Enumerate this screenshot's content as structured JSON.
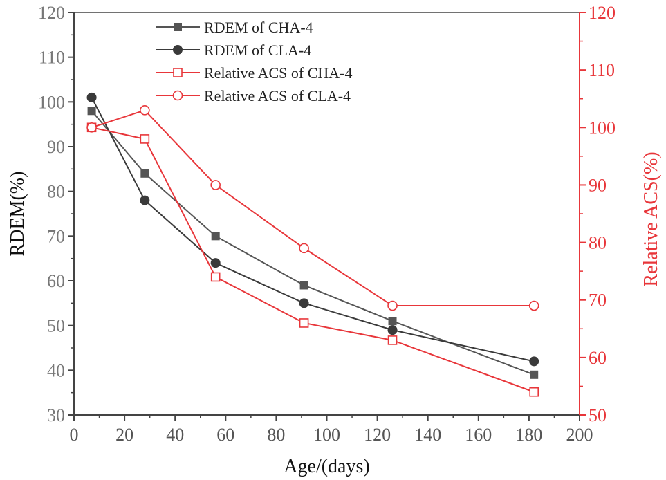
{
  "chart_data": {
    "type": "line",
    "xlabel": "Age/(days)",
    "ylabel": "RDEM(%)",
    "y2label": "Relative ACS(%)",
    "xlim": [
      0,
      200
    ],
    "ylim": [
      30,
      120
    ],
    "y2lim": [
      50,
      120
    ],
    "xticks": [
      "0",
      "20",
      "40",
      "60",
      "80",
      "100",
      "120",
      "140",
      "160",
      "180",
      "200"
    ],
    "yticks": [
      "30",
      "40",
      "50",
      "60",
      "70",
      "80",
      "90",
      "100",
      "110",
      "120"
    ],
    "y2ticks": [
      "50",
      "60",
      "70",
      "80",
      "90",
      "100",
      "110",
      "120"
    ],
    "legend_position": "top-left",
    "colors": {
      "dark": "#444444",
      "red": "#e8363a"
    },
    "series": [
      {
        "name": "RDEM of CHA-4",
        "axis": "left",
        "marker": "square-filled",
        "color": "#555555",
        "x": [
          7,
          28,
          56,
          91,
          126,
          182
        ],
        "y": [
          98,
          84,
          70,
          59,
          51,
          39
        ]
      },
      {
        "name": "RDEM of CLA-4",
        "axis": "left",
        "marker": "circle-filled",
        "color": "#3a3a3a",
        "x": [
          7,
          28,
          56,
          91,
          126,
          182
        ],
        "y": [
          101,
          78,
          64,
          55,
          49,
          42
        ]
      },
      {
        "name": "Relative ACS of CHA-4",
        "axis": "right",
        "marker": "square-open",
        "color": "#e8363a",
        "x": [
          7,
          28,
          56,
          91,
          126,
          182
        ],
        "y": [
          100,
          98,
          74,
          66,
          63,
          54
        ]
      },
      {
        "name": "Relative ACS of CLA-4",
        "axis": "right",
        "marker": "circle-open",
        "color": "#e8363a",
        "x": [
          7,
          28,
          56,
          91,
          126,
          182
        ],
        "y": [
          100,
          103,
          90,
          79,
          69,
          69
        ]
      }
    ]
  }
}
